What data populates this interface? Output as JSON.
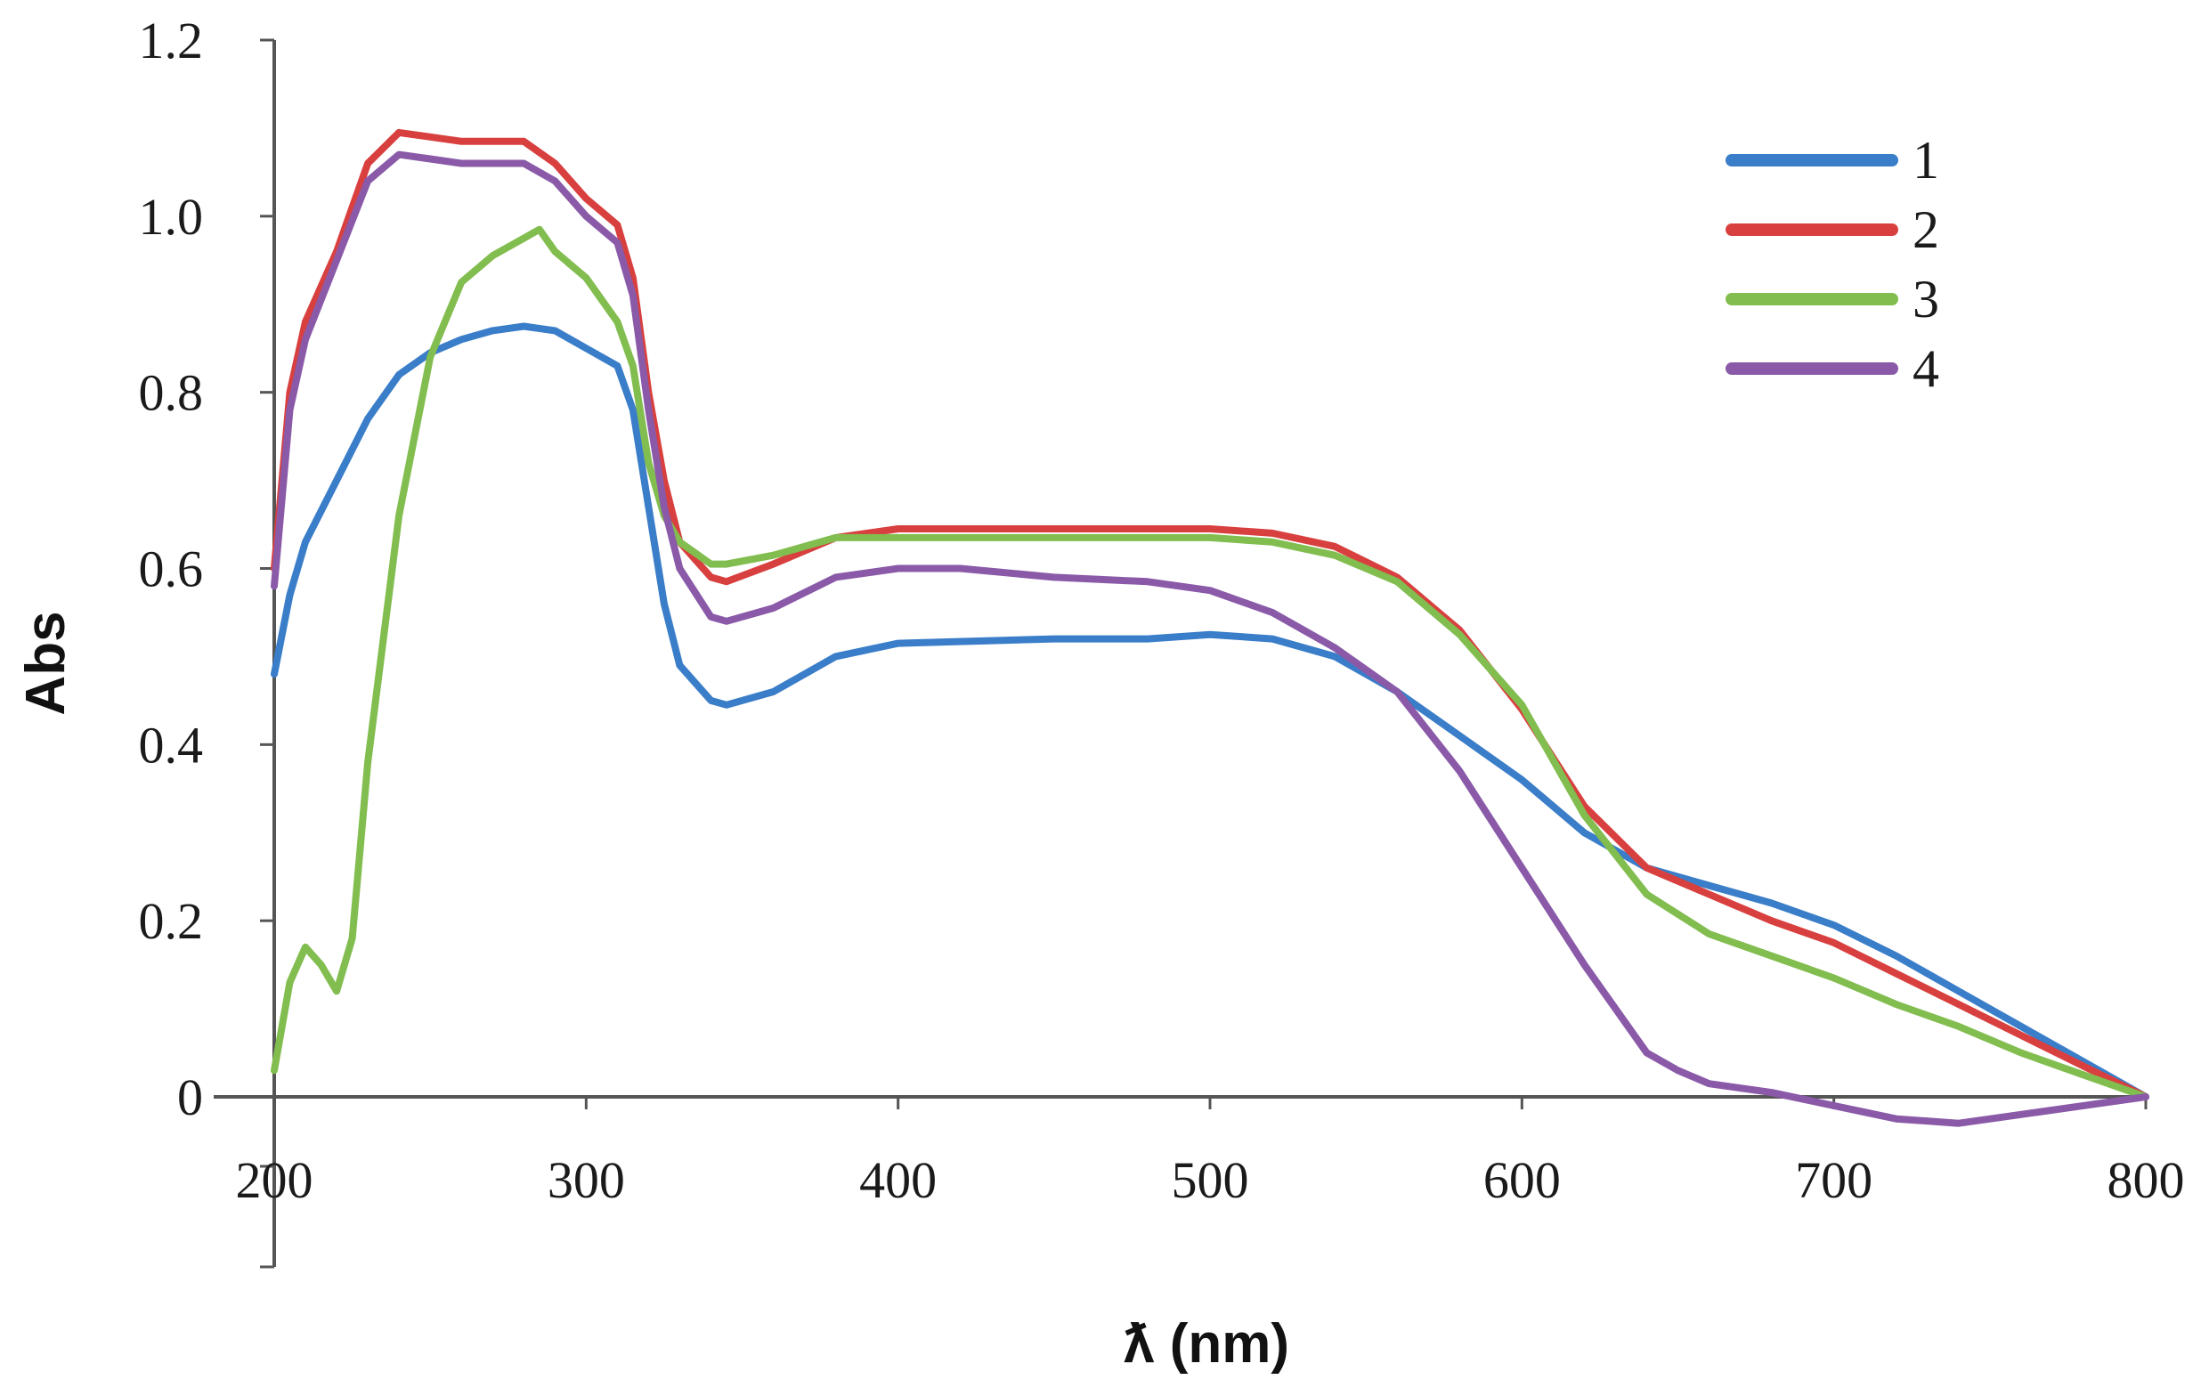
{
  "chart_data": {
    "type": "line",
    "title": "",
    "xlabel": "ƛ (nm)",
    "ylabel": "Abs",
    "xlim": [
      200,
      800
    ],
    "ylim": [
      -0.2,
      1.2
    ],
    "xticks": [
      "200",
      "300",
      "400",
      "500",
      "600",
      "700",
      "800"
    ],
    "yticks": [
      "0",
      "0.2",
      "0.4",
      "0.6",
      "0.8",
      "1.0",
      "1.2"
    ],
    "grid": false,
    "legend_position": "top-right",
    "series": [
      {
        "name": "1",
        "color": "#3a7dc8",
        "points": [
          [
            200,
            0.48
          ],
          [
            205,
            0.57
          ],
          [
            210,
            0.63
          ],
          [
            220,
            0.7
          ],
          [
            230,
            0.77
          ],
          [
            240,
            0.82
          ],
          [
            250,
            0.845
          ],
          [
            260,
            0.86
          ],
          [
            270,
            0.87
          ],
          [
            280,
            0.875
          ],
          [
            290,
            0.87
          ],
          [
            300,
            0.85
          ],
          [
            310,
            0.83
          ],
          [
            315,
            0.78
          ],
          [
            320,
            0.67
          ],
          [
            325,
            0.56
          ],
          [
            330,
            0.49
          ],
          [
            340,
            0.45
          ],
          [
            345,
            0.445
          ],
          [
            360,
            0.46
          ],
          [
            380,
            0.5
          ],
          [
            400,
            0.515
          ],
          [
            450,
            0.52
          ],
          [
            480,
            0.52
          ],
          [
            500,
            0.525
          ],
          [
            520,
            0.52
          ],
          [
            540,
            0.5
          ],
          [
            560,
            0.46
          ],
          [
            580,
            0.41
          ],
          [
            600,
            0.36
          ],
          [
            620,
            0.3
          ],
          [
            640,
            0.26
          ],
          [
            660,
            0.24
          ],
          [
            680,
            0.22
          ],
          [
            700,
            0.195
          ],
          [
            720,
            0.16
          ],
          [
            740,
            0.12
          ],
          [
            760,
            0.08
          ],
          [
            780,
            0.04
          ],
          [
            800,
            0.0
          ]
        ]
      },
      {
        "name": "2",
        "color": "#d8403f",
        "points": [
          [
            200,
            0.6
          ],
          [
            205,
            0.8
          ],
          [
            210,
            0.88
          ],
          [
            220,
            0.96
          ],
          [
            230,
            1.06
          ],
          [
            240,
            1.095
          ],
          [
            250,
            1.09
          ],
          [
            260,
            1.085
          ],
          [
            270,
            1.085
          ],
          [
            280,
            1.085
          ],
          [
            290,
            1.06
          ],
          [
            300,
            1.02
          ],
          [
            310,
            0.99
          ],
          [
            315,
            0.93
          ],
          [
            320,
            0.8
          ],
          [
            325,
            0.7
          ],
          [
            330,
            0.63
          ],
          [
            340,
            0.59
          ],
          [
            345,
            0.585
          ],
          [
            360,
            0.605
          ],
          [
            380,
            0.635
          ],
          [
            400,
            0.645
          ],
          [
            450,
            0.645
          ],
          [
            500,
            0.645
          ],
          [
            520,
            0.64
          ],
          [
            540,
            0.625
          ],
          [
            560,
            0.59
          ],
          [
            580,
            0.53
          ],
          [
            600,
            0.44
          ],
          [
            620,
            0.33
          ],
          [
            640,
            0.26
          ],
          [
            660,
            0.23
          ],
          [
            680,
            0.2
          ],
          [
            700,
            0.175
          ],
          [
            720,
            0.14
          ],
          [
            740,
            0.105
          ],
          [
            760,
            0.07
          ],
          [
            780,
            0.035
          ],
          [
            800,
            0.0
          ]
        ]
      },
      {
        "name": "3",
        "color": "#82bd4f",
        "points": [
          [
            200,
            0.03
          ],
          [
            205,
            0.13
          ],
          [
            210,
            0.17
          ],
          [
            215,
            0.15
          ],
          [
            220,
            0.12
          ],
          [
            225,
            0.18
          ],
          [
            230,
            0.38
          ],
          [
            240,
            0.66
          ],
          [
            250,
            0.84
          ],
          [
            260,
            0.925
          ],
          [
            270,
            0.955
          ],
          [
            280,
            0.975
          ],
          [
            285,
            0.985
          ],
          [
            290,
            0.96
          ],
          [
            300,
            0.93
          ],
          [
            310,
            0.88
          ],
          [
            315,
            0.83
          ],
          [
            320,
            0.72
          ],
          [
            325,
            0.66
          ],
          [
            330,
            0.63
          ],
          [
            340,
            0.605
          ],
          [
            345,
            0.605
          ],
          [
            360,
            0.615
          ],
          [
            380,
            0.635
          ],
          [
            400,
            0.635
          ],
          [
            450,
            0.635
          ],
          [
            500,
            0.635
          ],
          [
            520,
            0.63
          ],
          [
            540,
            0.615
          ],
          [
            560,
            0.585
          ],
          [
            580,
            0.525
          ],
          [
            600,
            0.445
          ],
          [
            620,
            0.32
          ],
          [
            640,
            0.23
          ],
          [
            660,
            0.185
          ],
          [
            680,
            0.16
          ],
          [
            700,
            0.135
          ],
          [
            720,
            0.105
          ],
          [
            740,
            0.08
          ],
          [
            760,
            0.05
          ],
          [
            780,
            0.025
          ],
          [
            800,
            0.0
          ]
        ]
      },
      {
        "name": "4",
        "color": "#8a5aa8",
        "points": [
          [
            200,
            0.58
          ],
          [
            205,
            0.78
          ],
          [
            210,
            0.86
          ],
          [
            220,
            0.95
          ],
          [
            230,
            1.04
          ],
          [
            240,
            1.07
          ],
          [
            250,
            1.065
          ],
          [
            260,
            1.06
          ],
          [
            270,
            1.06
          ],
          [
            280,
            1.06
          ],
          [
            290,
            1.04
          ],
          [
            300,
            1.0
          ],
          [
            310,
            0.97
          ],
          [
            315,
            0.91
          ],
          [
            320,
            0.78
          ],
          [
            325,
            0.67
          ],
          [
            330,
            0.6
          ],
          [
            340,
            0.545
          ],
          [
            345,
            0.54
          ],
          [
            360,
            0.555
          ],
          [
            380,
            0.59
          ],
          [
            400,
            0.6
          ],
          [
            420,
            0.6
          ],
          [
            450,
            0.59
          ],
          [
            480,
            0.585
          ],
          [
            500,
            0.575
          ],
          [
            520,
            0.55
          ],
          [
            540,
            0.51
          ],
          [
            560,
            0.46
          ],
          [
            580,
            0.37
          ],
          [
            600,
            0.26
          ],
          [
            620,
            0.15
          ],
          [
            640,
            0.05
          ],
          [
            650,
            0.03
          ],
          [
            660,
            0.015
          ],
          [
            680,
            0.005
          ],
          [
            700,
            -0.01
          ],
          [
            720,
            -0.025
          ],
          [
            740,
            -0.03
          ],
          [
            760,
            -0.02
          ],
          [
            780,
            -0.01
          ],
          [
            800,
            0.0
          ]
        ]
      }
    ]
  }
}
